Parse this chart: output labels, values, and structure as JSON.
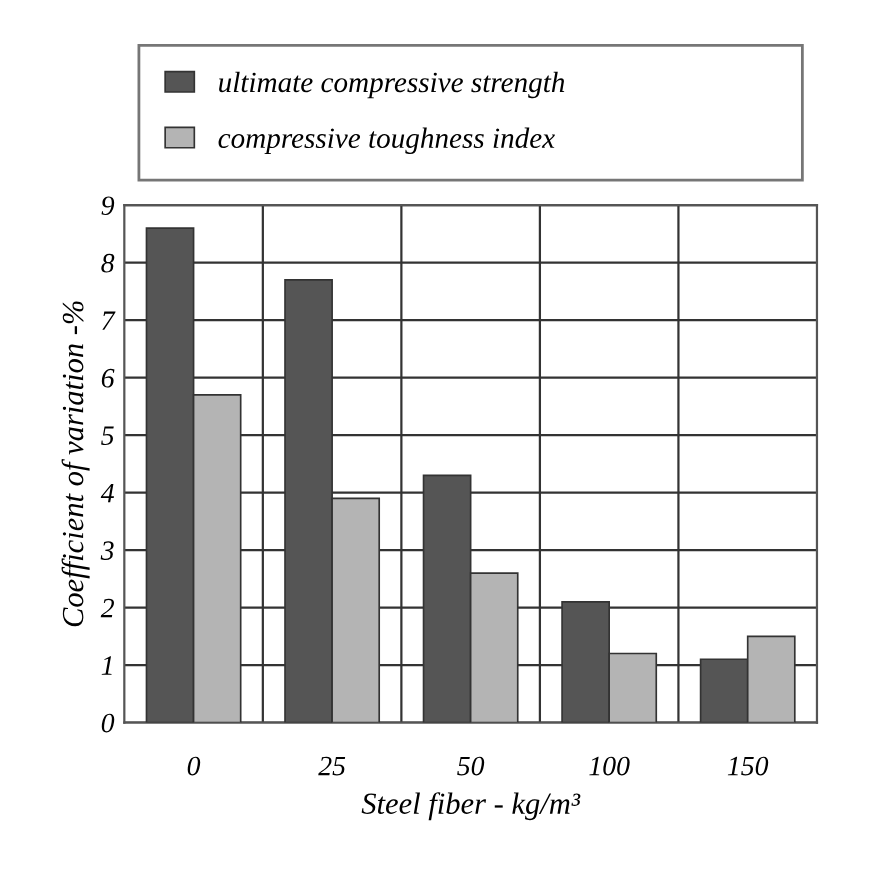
{
  "chart_data": {
    "type": "bar",
    "xlabel": "Steel fiber - kg/m³",
    "ylabel": "Coefficient of variation -%",
    "categories": [
      "0",
      "25",
      "50",
      "100",
      "150"
    ],
    "series": [
      {
        "name": "ultimate compressive strength",
        "color": "#555555",
        "values": [
          8.6,
          7.7,
          4.3,
          2.1,
          1.1
        ]
      },
      {
        "name": "compressive toughness index",
        "color": "#b4b4b4",
        "values": [
          5.7,
          3.9,
          2.6,
          1.2,
          1.5
        ]
      }
    ],
    "ylim": [
      0,
      9
    ],
    "yticks": [
      0,
      1,
      2,
      3,
      4,
      5,
      6,
      7,
      8,
      9
    ],
    "grid": true,
    "legend": "top"
  }
}
